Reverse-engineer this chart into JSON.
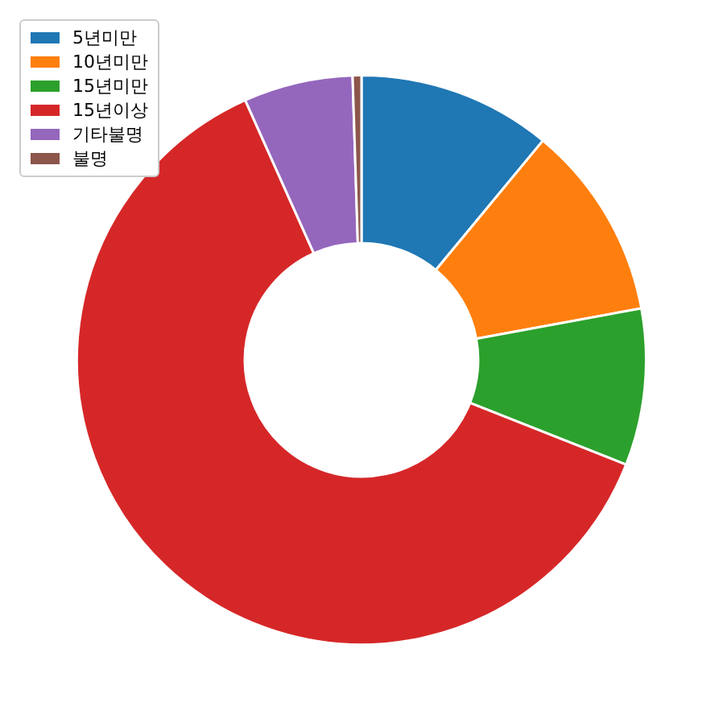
{
  "chart_data": {
    "type": "donut",
    "categories": [
      "5년미만",
      "10년미만",
      "15년미만",
      "15년이상",
      "기타불명",
      "불명"
    ],
    "values": [
      11.0,
      11.1,
      8.9,
      62.3,
      6.2,
      0.5
    ],
    "colors": [
      "#1f77b4",
      "#ff7f0e",
      "#2ca02c",
      "#d62728",
      "#9467bd",
      "#8c564b"
    ],
    "legend": "top left"
  }
}
